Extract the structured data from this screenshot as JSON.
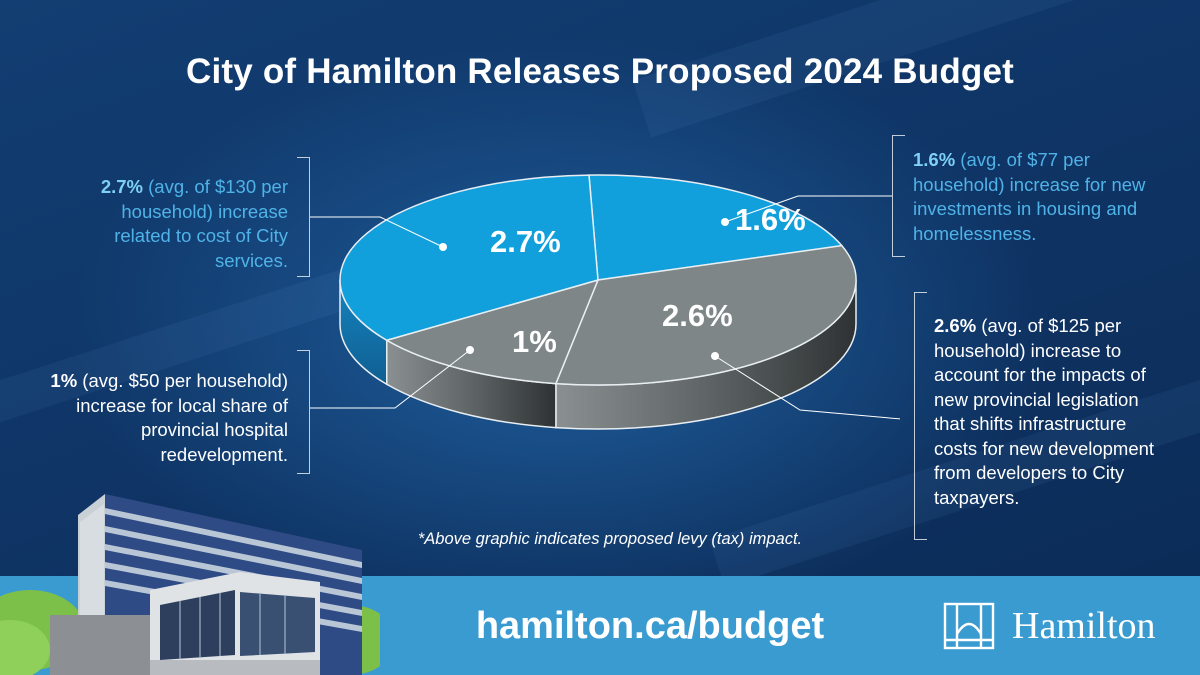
{
  "title": "City of Hamilton Releases Proposed 2024 Budget",
  "chart_data": {
    "type": "pie",
    "title": "City of Hamilton Releases Proposed 2024 Budget",
    "unit": "%",
    "slices": [
      {
        "label": "1.6%",
        "value": 1.6,
        "color": "#12a0dd"
      },
      {
        "label": "2.6%",
        "value": 2.6,
        "color": "#7f8687"
      },
      {
        "label": "1%",
        "value": 1.0,
        "color": "#7f8687"
      },
      {
        "label": "2.7%",
        "value": 2.7,
        "color": "#12a0dd"
      }
    ],
    "annotations": [
      {
        "slice": "2.7%",
        "bold": "2.7%",
        "text": " (avg. of $130 per household) increase related to cost of City services."
      },
      {
        "slice": "1.6%",
        "bold": "1.6%",
        "text": " (avg. of $77 per household) increase for new investments in housing and homelessness."
      },
      {
        "slice": "1%",
        "bold": "1%",
        "text": " (avg. $50 per household) increase for local share of provincial hospital redevelopment."
      },
      {
        "slice": "2.6%",
        "bold": "2.6%",
        "text": " (avg. of $125 per household) increase to account for the impacts of new provincial legislation that shifts infrastructure costs for new development from developers to City taxpayers."
      }
    ]
  },
  "footnote": "*Above graphic indicates proposed levy (tax) impact.",
  "footer": {
    "url": "hamilton.ca/budget",
    "logo_text": "Hamilton"
  },
  "colors": {
    "background": "#0f3566",
    "accent_blue": "#12a0dd",
    "slice_gray": "#7f8687",
    "footer_blue": "#3a9bd0"
  },
  "icons": [
    "hamilton-logo-icon",
    "hospital-building-illustration"
  ]
}
